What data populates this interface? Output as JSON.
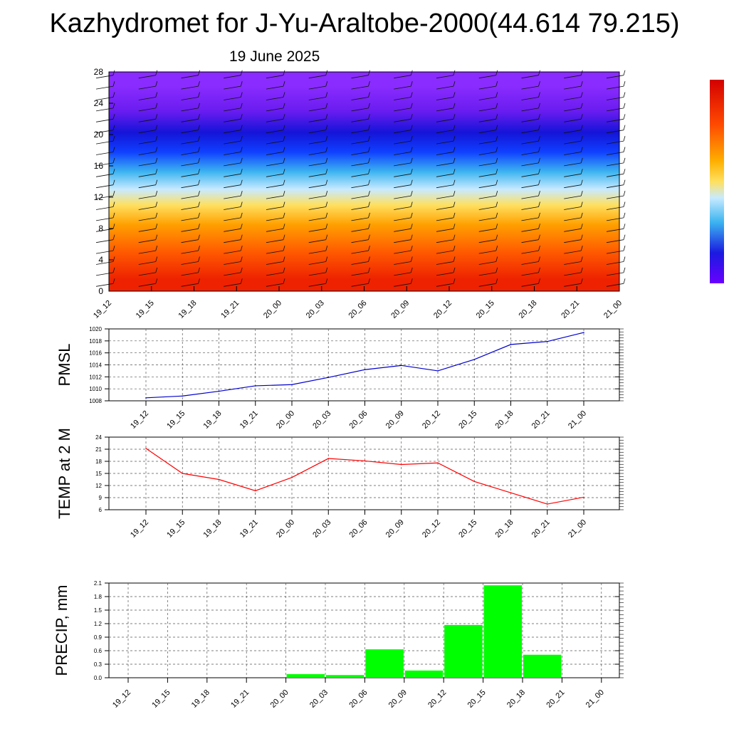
{
  "title": "Kazhydromet for J-Yu-Araltobe-2000(44.614 79.215)",
  "subtitle": "19 June 2025",
  "colors": {
    "pmsl_line": "#0000cc",
    "temp_line": "#ff0000",
    "precip_bar": "#00ff00",
    "colorbar_top": "#d40000",
    "colorbar_bottom": "#6a00ff"
  },
  "chart_data": [
    {
      "type": "heatmap",
      "name": "wind-profile",
      "x": [
        "19_12",
        "19_15",
        "19_18",
        "19_21",
        "20_00",
        "20_03",
        "20_06",
        "20_09",
        "20_12",
        "20_15",
        "20_18",
        "20_21",
        "21_00"
      ],
      "y_ticks": [
        0,
        4,
        8,
        12,
        16,
        20,
        24,
        28
      ],
      "ylim": [
        0,
        28
      ],
      "bands": [
        {
          "from": 0,
          "to": 3,
          "color": "#ee2200"
        },
        {
          "from": 3,
          "to": 7,
          "color": "#ff5a00"
        },
        {
          "from": 7,
          "to": 10,
          "color": "#ffa000"
        },
        {
          "from": 10,
          "to": 12,
          "color": "#ffe060"
        },
        {
          "from": 12,
          "to": 14,
          "color": "#c8eaff"
        },
        {
          "from": 14,
          "to": 16.5,
          "color": "#3cb4f0"
        },
        {
          "from": 16.5,
          "to": 19,
          "color": "#1040ff"
        },
        {
          "from": 19,
          "to": 21.5,
          "color": "#1414d8"
        },
        {
          "from": 21.5,
          "to": 24.5,
          "color": "#6a1cf0"
        },
        {
          "from": 24.5,
          "to": 28,
          "color": "#8a2cff"
        }
      ],
      "wind_barbs": true
    },
    {
      "type": "line",
      "name": "pmsl",
      "ylabel": "PMSL",
      "x": [
        "19_12",
        "19_15",
        "19_18",
        "19_21",
        "20_00",
        "20_03",
        "20_06",
        "20_09",
        "20_12",
        "20_15",
        "20_18",
        "20_21",
        "21_00"
      ],
      "values": [
        1008.5,
        1008.8,
        1009.6,
        1010.5,
        1010.7,
        1011.9,
        1013.2,
        1013.9,
        1013.0,
        1014.9,
        1017.4,
        1017.9,
        1019.4
      ],
      "ylim": [
        1008,
        1020
      ],
      "yticks": [
        1008,
        1010,
        1012,
        1014,
        1016,
        1018,
        1020
      ],
      "grid": true
    },
    {
      "type": "line",
      "name": "temperature",
      "ylabel": "TEMP at 2 M",
      "x": [
        "19_12",
        "19_15",
        "19_18",
        "19_21",
        "20_00",
        "20_03",
        "20_06",
        "20_09",
        "20_12",
        "20_15",
        "20_18",
        "20_21",
        "21_00"
      ],
      "values": [
        21.2,
        15.0,
        13.5,
        10.7,
        14.0,
        18.7,
        18.1,
        17.2,
        17.6,
        13.0,
        10.2,
        7.4,
        9.1
      ],
      "ylim": [
        6,
        24
      ],
      "yticks": [
        6,
        9,
        12,
        15,
        18,
        21,
        24
      ],
      "grid": true
    },
    {
      "type": "bar",
      "name": "precipitation",
      "ylabel": "PRECIP, mm",
      "categories": [
        "19_12",
        "19_15",
        "19_18",
        "19_21",
        "20_00",
        "20_03",
        "20_06",
        "20_09",
        "20_12",
        "20_15",
        "20_18",
        "20_21",
        "21_00"
      ],
      "values": [
        0,
        0,
        0,
        0,
        0,
        0.08,
        0.06,
        0.63,
        0.16,
        1.17,
        2.05,
        0.51,
        0
      ],
      "ylim": [
        0,
        2.1
      ],
      "yticks": [
        "0.0",
        "0.3",
        "0.6",
        "0.9",
        "1.2",
        "1.5",
        "1.8",
        "2.1"
      ],
      "grid": true
    }
  ]
}
